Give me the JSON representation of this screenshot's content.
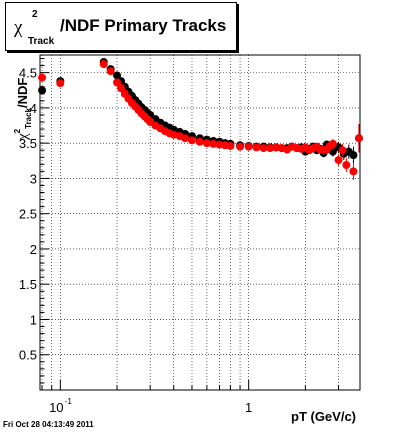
{
  "title": {
    "chi": "χ",
    "sup": "2",
    "sub": "Track",
    "rest": "/NDF  Primary Tracks"
  },
  "ylabel": {
    "chi": "χ",
    "sup": "2",
    "sub": "Track",
    "rest": "/NDF"
  },
  "xlabel": "pT (GeV/c)",
  "timestamp": "Fri Oct 28 04:13:49 2011",
  "chart_data": {
    "type": "scatter",
    "x_scale": "log",
    "xlim": [
      0.078,
      3.9
    ],
    "ylim": [
      0,
      4.75
    ],
    "grid": true,
    "x_ticks": [
      {
        "value": 0.1,
        "label": "10",
        "sup": "-1"
      },
      {
        "value": 1,
        "label": "1",
        "sup": ""
      }
    ],
    "y_ticks": [
      {
        "value": 0.5,
        "label": "0.5"
      },
      {
        "value": 1,
        "label": "1"
      },
      {
        "value": 1.5,
        "label": "1.5"
      },
      {
        "value": 2,
        "label": "2"
      },
      {
        "value": 2.5,
        "label": "2.5"
      },
      {
        "value": 3,
        "label": "3"
      },
      {
        "value": 3.5,
        "label": "3.5"
      },
      {
        "value": 4,
        "label": "4"
      },
      {
        "value": 4.5,
        "label": "4.5"
      }
    ],
    "series": [
      {
        "color": "#000000",
        "x": [
          0.08,
          0.1,
          0.17,
          0.185,
          0.2,
          0.21,
          0.22,
          0.23,
          0.24,
          0.25,
          0.26,
          0.27,
          0.28,
          0.29,
          0.3,
          0.32,
          0.34,
          0.36,
          0.38,
          0.4,
          0.43,
          0.46,
          0.5,
          0.55,
          0.6,
          0.65,
          0.7,
          0.75,
          0.8,
          0.9,
          1.0,
          1.1,
          1.2,
          1.3,
          1.4,
          1.5,
          1.6,
          1.7,
          1.8,
          1.9,
          2.0,
          2.1,
          2.2,
          2.3,
          2.4,
          2.5,
          2.6,
          2.7,
          2.8,
          3.0,
          3.2,
          3.4,
          3.6,
          3.85
        ],
        "y": [
          4.25,
          4.38,
          4.65,
          4.55,
          4.46,
          4.38,
          4.3,
          4.23,
          4.17,
          4.11,
          4.06,
          4.01,
          3.97,
          3.93,
          3.9,
          3.84,
          3.79,
          3.75,
          3.72,
          3.69,
          3.66,
          3.63,
          3.6,
          3.57,
          3.55,
          3.53,
          3.52,
          3.5,
          3.49,
          3.47,
          3.46,
          3.45,
          3.45,
          3.44,
          3.44,
          3.43,
          3.43,
          3.45,
          3.43,
          3.44,
          3.38,
          3.42,
          3.45,
          3.4,
          3.42,
          3.36,
          3.48,
          3.43,
          3.38,
          3.44,
          3.35,
          3.38,
          3.33,
          3.57
        ],
        "err": [
          0.06,
          0.05,
          0.03,
          0.02,
          0.02,
          0.02,
          0.02,
          0.02,
          0.02,
          0.02,
          0.02,
          0.02,
          0.02,
          0.02,
          0.02,
          0.02,
          0.02,
          0.02,
          0.02,
          0.02,
          0.02,
          0.02,
          0.02,
          0.02,
          0.02,
          0.02,
          0.02,
          0.02,
          0.02,
          0.02,
          0.02,
          0.02,
          0.02,
          0.02,
          0.02,
          0.02,
          0.03,
          0.03,
          0.03,
          0.04,
          0.04,
          0.04,
          0.05,
          0.05,
          0.05,
          0.06,
          0.06,
          0.07,
          0.07,
          0.08,
          0.09,
          0.1,
          0.12,
          0.2
        ]
      },
      {
        "color": "#ff0000",
        "x": [
          0.08,
          0.1,
          0.17,
          0.185,
          0.2,
          0.21,
          0.22,
          0.23,
          0.24,
          0.25,
          0.26,
          0.27,
          0.28,
          0.29,
          0.3,
          0.32,
          0.34,
          0.36,
          0.38,
          0.4,
          0.43,
          0.46,
          0.5,
          0.55,
          0.6,
          0.65,
          0.7,
          0.75,
          0.8,
          0.9,
          1.0,
          1.1,
          1.2,
          1.3,
          1.4,
          1.5,
          1.6,
          1.7,
          1.8,
          1.9,
          2.0,
          2.1,
          2.2,
          2.3,
          2.4,
          2.5,
          2.6,
          2.7,
          2.8,
          3.0,
          3.15,
          3.3,
          3.6,
          3.85
        ],
        "y": [
          4.43,
          4.35,
          4.62,
          4.52,
          4.36,
          4.28,
          4.2,
          4.13,
          4.07,
          4.02,
          3.97,
          3.92,
          3.88,
          3.84,
          3.8,
          3.75,
          3.71,
          3.67,
          3.64,
          3.62,
          3.6,
          3.57,
          3.54,
          3.52,
          3.5,
          3.49,
          3.48,
          3.47,
          3.46,
          3.45,
          3.45,
          3.44,
          3.43,
          3.43,
          3.44,
          3.43,
          3.41,
          3.45,
          3.43,
          3.42,
          3.44,
          3.4,
          3.43,
          3.45,
          3.41,
          3.4,
          3.41,
          3.46,
          3.49,
          3.26,
          3.4,
          3.19,
          3.1,
          3.57
        ],
        "err": [
          0.06,
          0.05,
          0.03,
          0.02,
          0.02,
          0.02,
          0.02,
          0.02,
          0.02,
          0.02,
          0.02,
          0.02,
          0.02,
          0.02,
          0.02,
          0.02,
          0.02,
          0.02,
          0.02,
          0.02,
          0.02,
          0.02,
          0.02,
          0.02,
          0.02,
          0.02,
          0.02,
          0.02,
          0.02,
          0.02,
          0.02,
          0.02,
          0.02,
          0.02,
          0.02,
          0.02,
          0.03,
          0.03,
          0.03,
          0.04,
          0.04,
          0.04,
          0.05,
          0.05,
          0.05,
          0.06,
          0.06,
          0.07,
          0.07,
          0.08,
          0.09,
          0.1,
          0.12,
          0.2
        ]
      }
    ]
  }
}
